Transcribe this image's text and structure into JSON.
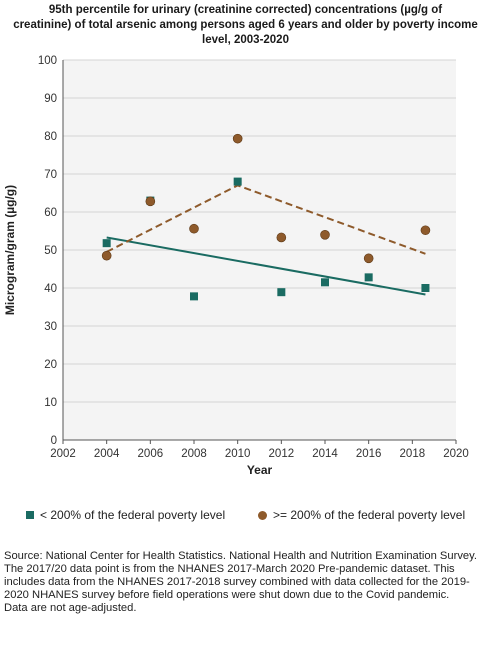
{
  "chart_data": {
    "type": "scatter",
    "title": "95th percentile for urinary (creatinine corrected) concentrations (µg/g of\ncreatinine) of total arsenic among persons aged 6 years and older by poverty income\nlevel, 2003-2020",
    "xlabel": "Year",
    "ylabel": "Microgram/gram (µg/g)",
    "xlim": [
      2002,
      2020
    ],
    "ylim": [
      0,
      100
    ],
    "xticks": [
      "2002",
      "2004",
      "2006",
      "2008",
      "2010",
      "2012",
      "2014",
      "2016",
      "2018",
      "2020"
    ],
    "yticks": [
      "0",
      "10",
      "20",
      "30",
      "40",
      "50",
      "60",
      "70",
      "80",
      "90",
      "100"
    ],
    "grid": "horizontal",
    "legend_position": "bottom",
    "series": [
      {
        "name": "< 200% of the federal poverty level",
        "marker": "square",
        "color": "#1a6b62",
        "x": [
          2004,
          2006,
          2008,
          2010,
          2012,
          2014,
          2016,
          2018.6
        ],
        "y": [
          51.8,
          63.0,
          37.8,
          68.0,
          38.9,
          41.5,
          42.8,
          40.0
        ],
        "trend": {
          "style": "solid",
          "x": [
            2004,
            2018.6
          ],
          "y": [
            53.3,
            38.3
          ]
        }
      },
      {
        "name": ">= 200% of the federal poverty level",
        "marker": "circle",
        "color": "#8e5a2b",
        "x": [
          2004,
          2006,
          2008,
          2010,
          2012,
          2014,
          2016,
          2018.6
        ],
        "y": [
          48.5,
          62.8,
          55.6,
          79.3,
          53.3,
          54.0,
          47.8,
          55.2
        ],
        "trend": {
          "style": "dashed",
          "x": [
            2004,
            2010,
            2018.6
          ],
          "y": [
            49.5,
            67.0,
            49.0
          ]
        }
      }
    ]
  },
  "source_lines": [
    "Source: National Center for Health Statistics. National Health and Nutrition Examination Survey.",
    "The 2017/20 data point is from the NHANES 2017-March 2020 Pre-pandemic dataset. This includes data from the NHANES 2017-2018 survey combined with data collected for the 2019-2020 NHANES survey before field operations were shut down due to the Covid pandemic.",
    "Data are not age-adjusted."
  ]
}
